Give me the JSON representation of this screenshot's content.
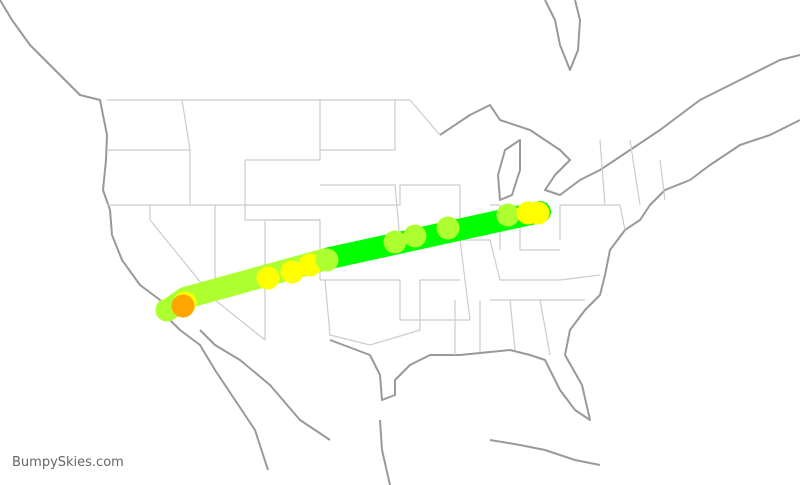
{
  "brand": "BumpySkies.com",
  "map": {
    "land_border_color": "#999999",
    "state_border_color": "#cccccc"
  },
  "turbulence_colors": {
    "smooth": "#00ff00",
    "light": "#adff2f",
    "moderate": "#ffff00",
    "heavy": "#ffa500"
  }
}
